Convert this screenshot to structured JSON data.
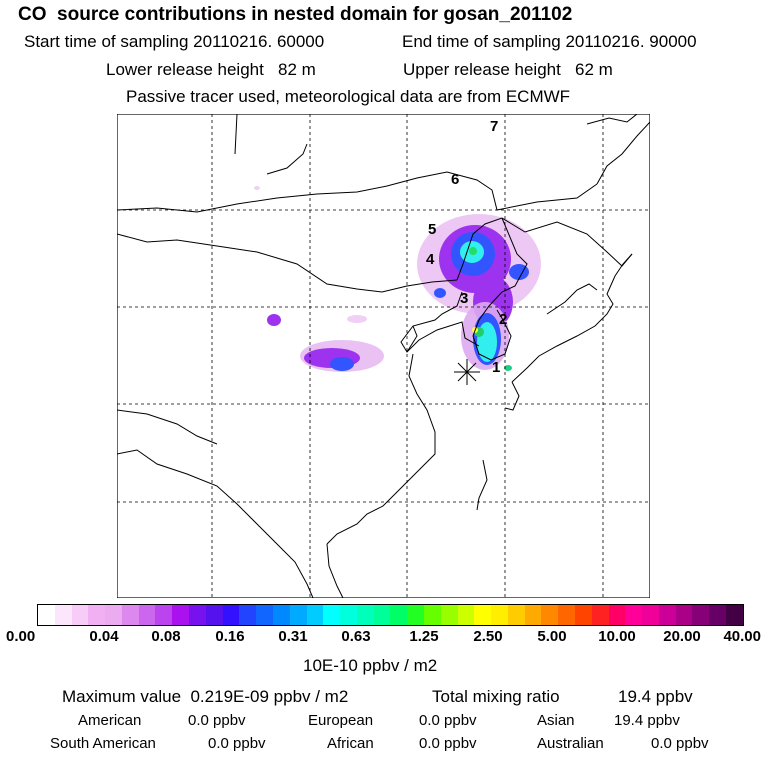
{
  "title": "CO  source contributions in nested domain for gosan_201102",
  "sampling": {
    "start_label": "Start time of sampling 20110216. 60000",
    "end_label": "End time of sampling 20110216. 90000"
  },
  "release": {
    "lower_label": "Lower release height   82 m",
    "upper_label": "Upper release height   62 m"
  },
  "note": "Passive tracer used, meteorological data are from ECMWF",
  "trajectory_labels": [
    "1",
    "2",
    "3",
    "4",
    "5",
    "6",
    "7"
  ],
  "receptor_icon": "asterisk-receptor-icon",
  "colors": {
    "colorbar": [
      "#ffffff",
      "#fbe6fb",
      "#f7cdf7",
      "#f0b0f2",
      "#ecaaf0",
      "#dd88ee",
      "#cc66ee",
      "#bb44ee",
      "#aa11ee",
      "#7711ee",
      "#5511ee",
      "#3311ff",
      "#2244ff",
      "#1166ff",
      "#0088ff",
      "#00aaff",
      "#00ccff",
      "#00ffff",
      "#00ffdd",
      "#00ffbb",
      "#00ff99",
      "#00ff66",
      "#22ff22",
      "#66ff00",
      "#99ff00",
      "#ccff00",
      "#ffff00",
      "#ffee00",
      "#ffcc00",
      "#ffaa00",
      "#ff8800",
      "#ff6600",
      "#ff4400",
      "#ff2222",
      "#ff0066",
      "#ff0099",
      "#ee0099",
      "#cc0099",
      "#aa0088",
      "#880077",
      "#660066",
      "#440044"
    ],
    "plume_low": "#e6b8f0",
    "plume_mid": "#9d33ee",
    "plume_blue": "#3355ff",
    "plume_cyan": "#33f0f0",
    "plume_green": "#22dd88",
    "plume_yellow": "#ffff33"
  },
  "colorbar_ticks": [
    "0.00",
    "0.04",
    "0.08",
    "0.16",
    "0.31",
    "0.63",
    "1.25",
    "2.50",
    "5.00",
    "10.00",
    "20.00",
    "40.00"
  ],
  "units_label": "10E-10 ppbv / m2",
  "stats": {
    "max_label": "Maximum value  0.219E-09 ppbv / m2",
    "total_label": "Total mixing ratio",
    "total_value": "19.4 ppbv"
  },
  "regions": {
    "american_label": "American",
    "american_value": "0.0 ppbv",
    "european_label": "European",
    "european_value": "0.0 ppbv",
    "asian_label": "Asian",
    "asian_value": "19.4 ppbv",
    "south_american_label": "South American",
    "south_american_value": "0.0 ppbv",
    "african_label": "African",
    "african_value": "0.0 ppbv",
    "australian_label": "Australian",
    "australian_value": "0.0 ppbv"
  }
}
